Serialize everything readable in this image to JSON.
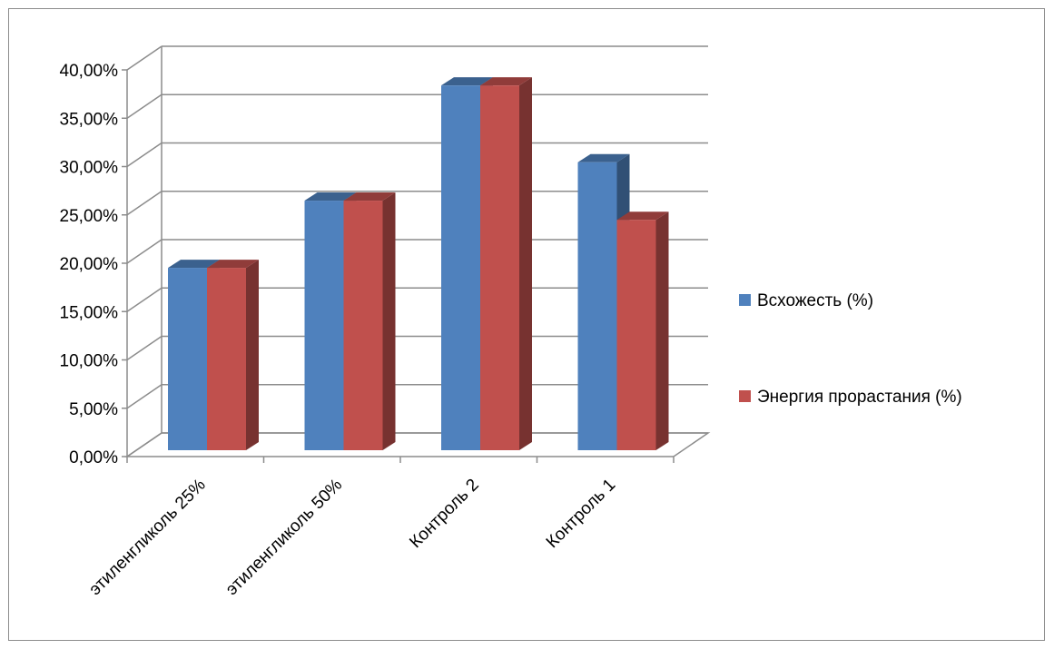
{
  "chart_data": {
    "type": "bar",
    "title": "",
    "xlabel": "",
    "ylabel": "",
    "categories": [
      "этиленгликоль 25%",
      "этиленгликоль 50%",
      "Контроль 2",
      "Контроль 1"
    ],
    "series": [
      {
        "name": "Всхожесть (%)",
        "values": [
          0.19,
          0.26,
          0.38,
          0.3
        ],
        "color": "#4F81BD"
      },
      {
        "name": "Энергия  прорастания (%)",
        "values": [
          0.19,
          0.26,
          0.38,
          0.24
        ],
        "color": "#C0504D"
      }
    ],
    "ylim": [
      0,
      0.4
    ],
    "y_ticks": [
      "0,00%",
      "5,00%",
      "10,00%",
      "15,00%",
      "20,00%",
      "25,00%",
      "30,00%",
      "35,00%",
      "40,00%"
    ],
    "grid": true,
    "legend": "right",
    "style": "3d-clustered-column"
  }
}
